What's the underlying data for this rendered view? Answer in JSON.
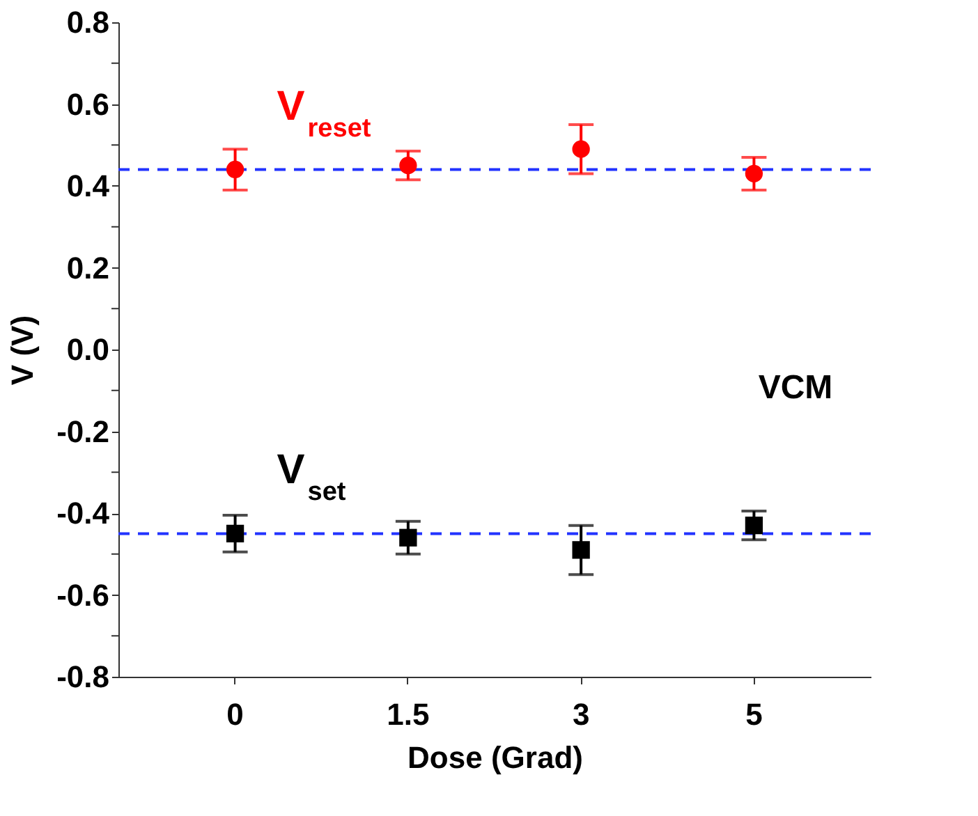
{
  "chart_data": {
    "type": "scatter",
    "xlabel": "Dose (Grad)",
    "ylabel": "V (V)",
    "categories": [
      "0",
      "1.5",
      "3",
      "5"
    ],
    "series": [
      {
        "name": "V$_{reset}$",
        "color": "#ff0000",
        "marker": "circle",
        "values": [
          0.44,
          0.45,
          0.49,
          0.43
        ],
        "errors": [
          0.05,
          0.035,
          0.06,
          0.04
        ]
      },
      {
        "name": "V$_{set}$",
        "color": "#000000",
        "marker": "square",
        "values": [
          -0.45,
          -0.46,
          -0.49,
          -0.43
        ],
        "errors": [
          0.045,
          0.04,
          0.06,
          0.035
        ]
      }
    ],
    "ref_lines": [
      {
        "axis": "y",
        "value": 0.44,
        "color": "#2233ff",
        "line_style": "dashed"
      },
      {
        "axis": "y",
        "value": -0.45,
        "color": "#2233ff",
        "line_style": "dashed"
      }
    ],
    "annotations": [
      "VCM"
    ],
    "ylim": [
      -0.8,
      0.8
    ],
    "yticks": [
      0.8,
      {
        "value": 0.7,
        "label": null
      },
      0.6,
      {
        "value": 0.5,
        "label": null
      },
      0.4,
      {
        "value": 0.3,
        "label": null
      },
      0.2,
      {
        "value": 0.1,
        "label": null
      },
      {
        "value": 0,
        "label": "0.0"
      },
      {
        "value": -0.1,
        "label": null
      },
      -0.2,
      {
        "value": -0.3,
        "label": null
      },
      -0.4,
      {
        "value": -0.5,
        "label": null
      },
      -0.6,
      {
        "value": -0.7,
        "label": null
      },
      -0.8
    ],
    "grid": false
  }
}
